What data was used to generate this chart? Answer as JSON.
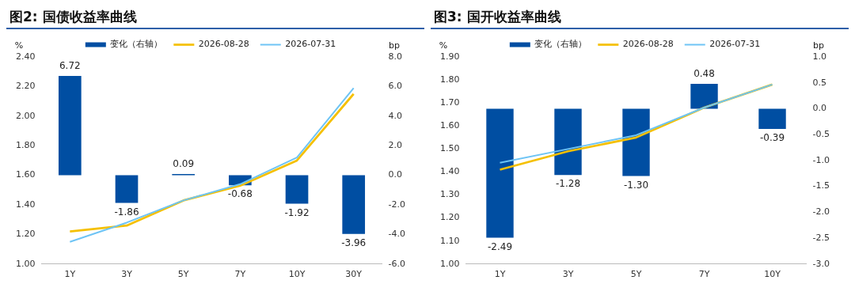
{
  "chart_data": [
    {
      "type": "bar",
      "title": "图2: 国债收益率曲线",
      "ylabel": "%",
      "y2label": "bp",
      "categories": [
        "1Y",
        "3Y",
        "5Y",
        "7Y",
        "10Y",
        "30Y"
      ],
      "series": [
        {
          "name": "变化（右轴）",
          "axis": "y2",
          "color": "#004ea2",
          "values": [
            6.72,
            -1.86,
            0.09,
            -0.68,
            -1.92,
            -3.96
          ],
          "value_labels": [
            "6.72",
            "-1.86",
            "0.09",
            "-0.68",
            "-1.92",
            "-3.96"
          ]
        },
        {
          "name": "2026-08-28",
          "type": "line",
          "color": "#f5c000",
          "values": [
            1.22,
            1.26,
            1.43,
            1.53,
            1.7,
            2.15
          ]
        },
        {
          "name": "2026-07-31",
          "type": "line",
          "color": "#6ec4f5",
          "values": [
            1.15,
            1.28,
            1.43,
            1.54,
            1.72,
            2.19
          ]
        }
      ],
      "ylim": [
        1.0,
        2.4
      ],
      "yticks": [
        {
          "value": 1.0,
          "label": "1.00"
        },
        {
          "value": 1.2,
          "label": "1.20"
        },
        {
          "value": 1.4,
          "label": "1.40"
        },
        {
          "value": 1.6,
          "label": "1.60"
        },
        {
          "value": 1.8,
          "label": "1.80"
        },
        {
          "value": 2.0,
          "label": "2.00"
        },
        {
          "value": 2.2,
          "label": "2.20"
        },
        {
          "value": 2.4,
          "label": "2.40"
        }
      ],
      "y2lim": [
        -6,
        8
      ],
      "y2ticks": [
        {
          "value": -6,
          "label": "-6.0"
        },
        {
          "value": -4,
          "label": "-4.0"
        },
        {
          "value": -2,
          "label": "-2.0"
        },
        {
          "value": 0,
          "label": "0.0"
        },
        {
          "value": 2,
          "label": "2.0"
        },
        {
          "value": 4,
          "label": "4.0"
        },
        {
          "value": 6,
          "label": "6.0"
        },
        {
          "value": 8,
          "label": "8.0"
        }
      ],
      "grid": false,
      "legend": "top",
      "marker": "none"
    },
    {
      "type": "bar",
      "title": "图3: 国开收益率曲线",
      "ylabel": "%",
      "y2label": "bp",
      "categories": [
        "1Y",
        "3Y",
        "5Y",
        "7Y",
        "10Y"
      ],
      "series": [
        {
          "name": "变化（右轴）",
          "axis": "y2",
          "color": "#004ea2",
          "values": [
            -2.49,
            -1.28,
            -1.3,
            0.48,
            -0.39
          ],
          "value_labels": [
            "-2.49",
            "-1.28",
            "-1.30",
            "0.48",
            "-0.39"
          ]
        },
        {
          "name": "2026-08-28",
          "type": "line",
          "color": "#f5c000",
          "values": [
            1.41,
            1.49,
            1.55,
            1.68,
            1.78
          ]
        },
        {
          "name": "2026-07-31",
          "type": "line",
          "color": "#6ec4f5",
          "values": [
            1.44,
            1.5,
            1.56,
            1.68,
            1.78
          ]
        }
      ],
      "ylim": [
        1.0,
        1.9
      ],
      "yticks": [
        {
          "value": 1.0,
          "label": "1.00"
        },
        {
          "value": 1.1,
          "label": "1.10"
        },
        {
          "value": 1.2,
          "label": "1.20"
        },
        {
          "value": 1.3,
          "label": "1.30"
        },
        {
          "value": 1.4,
          "label": "1.40"
        },
        {
          "value": 1.5,
          "label": "1.50"
        },
        {
          "value": 1.6,
          "label": "1.60"
        },
        {
          "value": 1.7,
          "label": "1.70"
        },
        {
          "value": 1.8,
          "label": "1.80"
        },
        {
          "value": 1.9,
          "label": "1.90"
        }
      ],
      "y2lim": [
        -3,
        1
      ],
      "y2ticks": [
        {
          "value": -3,
          "label": "-3.0"
        },
        {
          "value": -2.5,
          "label": "-2.5"
        },
        {
          "value": -2,
          "label": "-2.0"
        },
        {
          "value": -1.5,
          "label": "-1.5"
        },
        {
          "value": -1,
          "label": "-1.0"
        },
        {
          "value": -0.5,
          "label": "-0.5"
        },
        {
          "value": 0,
          "label": "0.0"
        },
        {
          "value": 0.5,
          "label": "0.5"
        },
        {
          "value": 1,
          "label": "1.0"
        }
      ],
      "grid": false,
      "legend": "top",
      "marker": "none"
    }
  ]
}
